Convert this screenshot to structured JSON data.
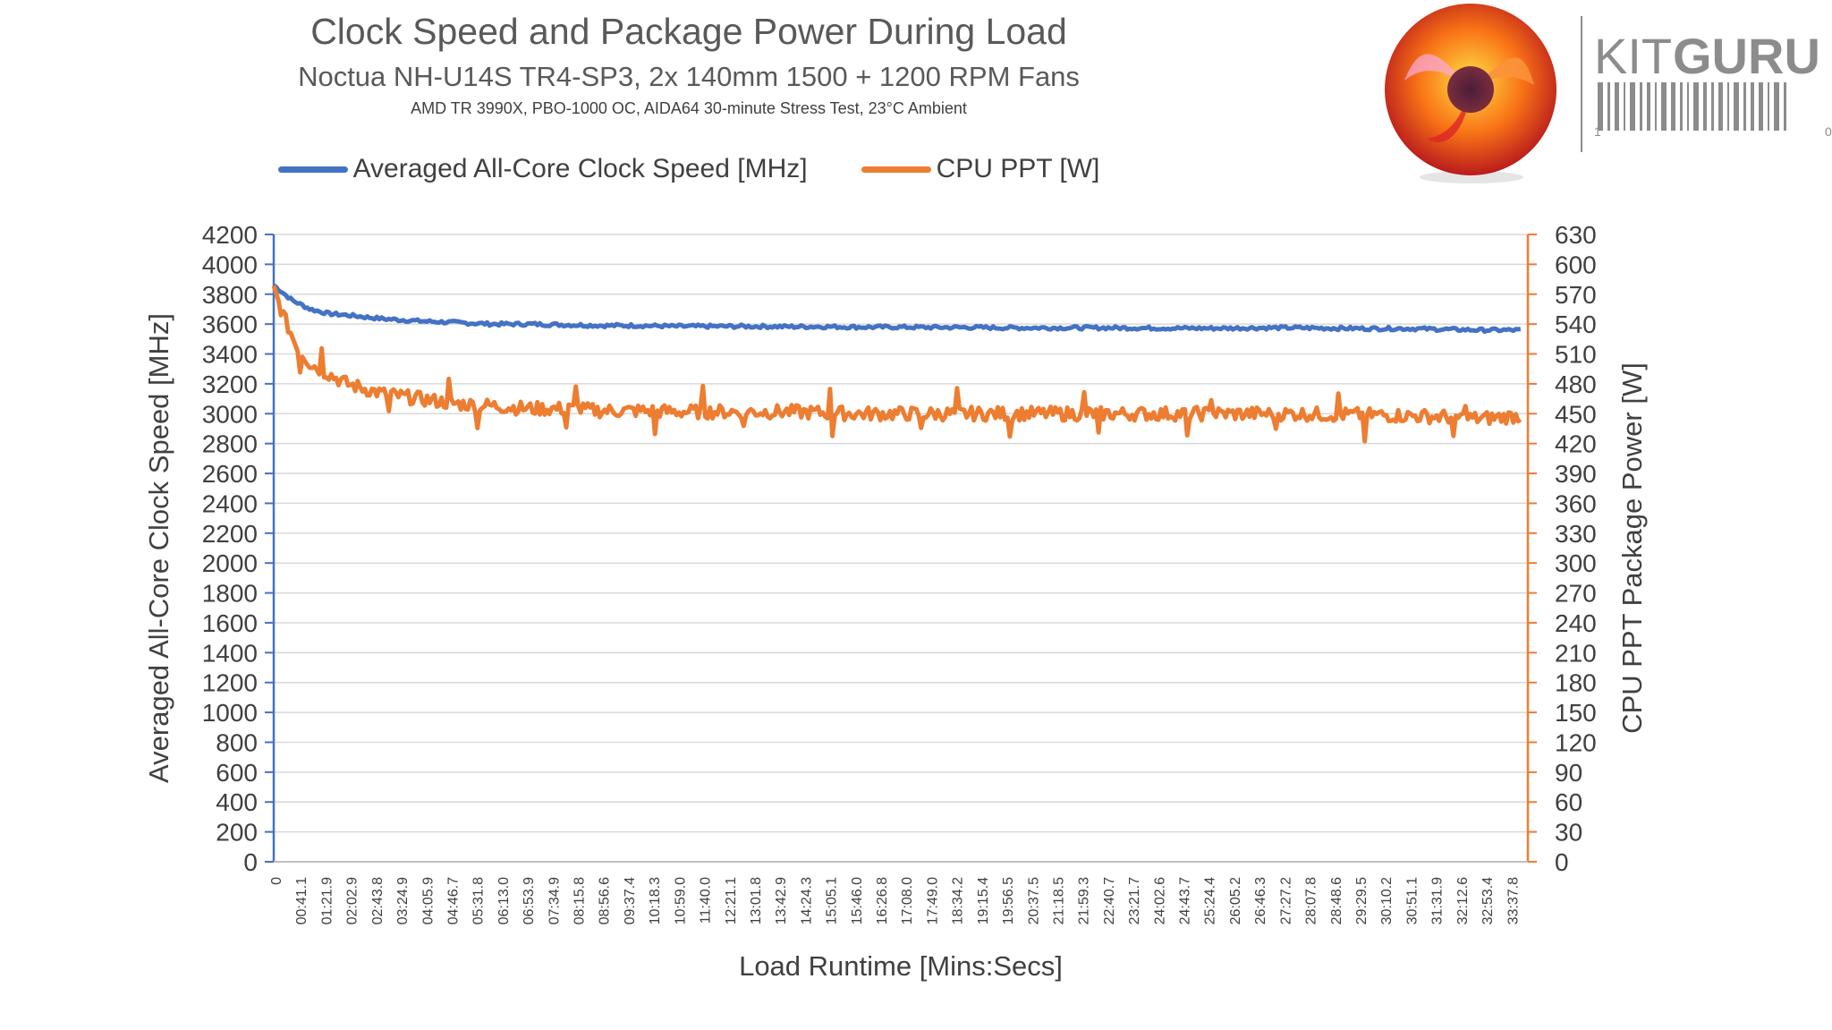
{
  "chart_data": {
    "type": "line",
    "title": "Clock Speed and Package Power During Load",
    "subtitle": "Noctua NH-U14S TR4-SP3, 2x 140mm 1500 + 1200 RPM Fans",
    "subsubtitle": "AMD TR 3990X, PBO-1000 OC, AIDA64 30-minute Stress Test, 23°C Ambient",
    "xlabel": "Load Runtime [Mins:Secs]",
    "ylabel_left": "Averaged All-Core Clock Speed [MHz]",
    "ylabel_right": "CPU PPT Package Power [W]",
    "ylim_left": [
      0,
      4200
    ],
    "ylim_right": [
      0,
      630
    ],
    "yticks_left": [
      "0",
      "200",
      "400",
      "600",
      "800",
      "1000",
      "1200",
      "1400",
      "1600",
      "1800",
      "2000",
      "2200",
      "2400",
      "2600",
      "2800",
      "3000",
      "3200",
      "3400",
      "3600",
      "3800",
      "4000",
      "4200"
    ],
    "yticks_right": [
      "0",
      "30",
      "60",
      "90",
      "120",
      "150",
      "180",
      "210",
      "240",
      "270",
      "300",
      "330",
      "360",
      "390",
      "420",
      "450",
      "480",
      "510",
      "540",
      "570",
      "600",
      "630"
    ],
    "xticks": [
      "0",
      "00:41.1",
      "01:21.9",
      "02:02.9",
      "02:43.8",
      "03:24.9",
      "04:05.9",
      "04:46.7",
      "05:31.8",
      "06:13.0",
      "06:53.9",
      "07:34.9",
      "08:15.8",
      "08:56.6",
      "09:37.4",
      "10:18.3",
      "10:59.0",
      "11:40.0",
      "12:21.1",
      "13:01.8",
      "13:42.9",
      "14:24.3",
      "15:05.1",
      "15:46.0",
      "16:26.8",
      "17:08.0",
      "17:49.0",
      "18:34.2",
      "19:15.4",
      "19:56.5",
      "20:37.5",
      "21:18.5",
      "21:59.3",
      "22:40.7",
      "23:21.7",
      "24:02.6",
      "24:43.7",
      "25:24.4",
      "26:05.2",
      "26:46.3",
      "27:27.2",
      "28:07.8",
      "28:48.6",
      "29:29.5",
      "30:10.2",
      "30:51.1",
      "31:31.9",
      "32:12.6",
      "32:53.4",
      "33:37.8"
    ],
    "legend_position": "top-center",
    "grid": true,
    "series": [
      {
        "name": "Averaged All-Core Clock Speed [MHz]",
        "axis": "left",
        "color": "#4472C4",
        "x_minutes": [
          0,
          0.5,
          1,
          1.5,
          2,
          3,
          4,
          5,
          6,
          7,
          8,
          9,
          10,
          11,
          12,
          13,
          14,
          15,
          16,
          17,
          18,
          19,
          20,
          21,
          22,
          23,
          24,
          25,
          26,
          27,
          28,
          29,
          30,
          31,
          32,
          33,
          34.1
        ],
        "values": [
          3860,
          3760,
          3700,
          3670,
          3660,
          3635,
          3620,
          3610,
          3600,
          3600,
          3595,
          3590,
          3590,
          3585,
          3585,
          3585,
          3583,
          3583,
          3580,
          3580,
          3578,
          3578,
          3575,
          3575,
          3575,
          3575,
          3573,
          3572,
          3572,
          3575,
          3575,
          3572,
          3570,
          3570,
          3565,
          3560,
          3560
        ]
      },
      {
        "name": "CPU PPT [W]",
        "axis": "right",
        "color": "#ED7D31",
        "x_minutes": [
          0,
          0.3,
          0.6,
          1,
          1.5,
          2,
          2.5,
          3,
          4,
          5,
          6,
          7,
          8,
          9,
          10,
          11,
          12,
          13,
          14,
          15,
          16,
          17,
          18,
          19,
          20,
          21,
          22,
          23,
          24,
          25,
          26,
          27,
          28,
          29,
          30,
          31,
          32,
          33,
          34.1
        ],
        "values": [
          575,
          545,
          520,
          500,
          490,
          480,
          475,
          470,
          465,
          460,
          458,
          455,
          455,
          453,
          453,
          452,
          452,
          452,
          452,
          451,
          450,
          450,
          450,
          450,
          450,
          450,
          450,
          450,
          450,
          450,
          450,
          450,
          450,
          449,
          449,
          448,
          447,
          445,
          448
        ]
      }
    ]
  },
  "logo": {
    "text_light": "KIT",
    "text_bold": "GURU",
    "tick_start": "1",
    "tick_end": "0"
  }
}
